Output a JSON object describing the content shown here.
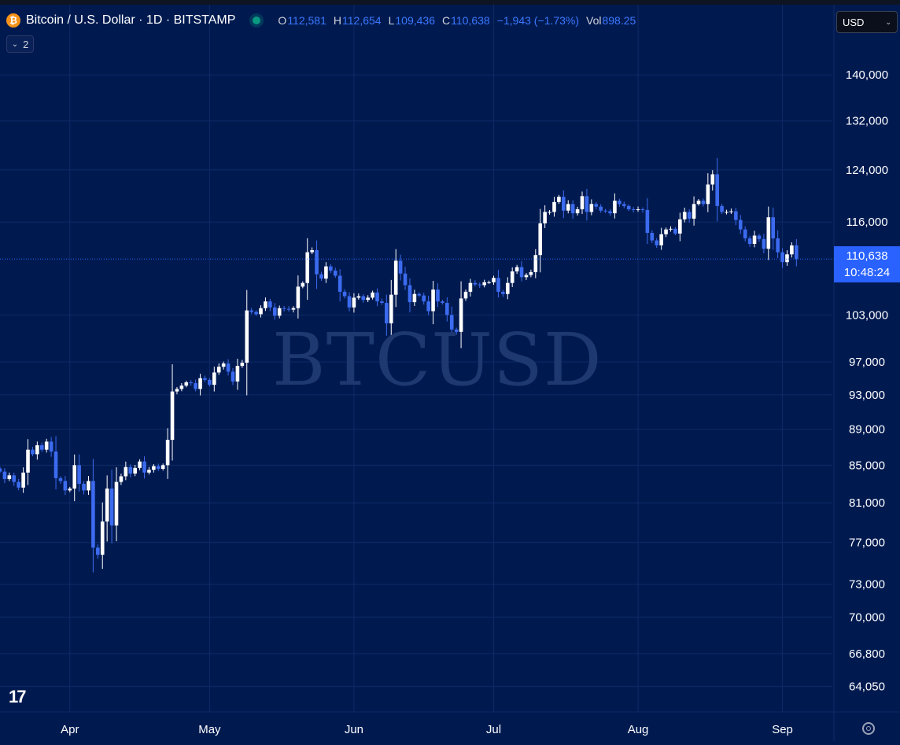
{
  "header": {
    "btc_icon_glyph": "₿",
    "title": "Bitcoin / U.S. Dollar · 1D · BITSTAMP",
    "ohlc": [
      {
        "k": "O",
        "v": "112,581"
      },
      {
        "k": "H",
        "v": "112,654"
      },
      {
        "k": "L",
        "v": "109,436"
      },
      {
        "k": "C",
        "v": "110,638"
      },
      {
        "k": "",
        "v": "−1,943 (−1.73%)"
      },
      {
        "k": "Vol",
        "v": "898.25"
      }
    ],
    "collapse_count": "2",
    "collapse_chevron": "⌄"
  },
  "currency": {
    "label": "USD",
    "chevron": "⌄"
  },
  "watermark": "BTCUSD",
  "last_price": {
    "price": "110,638",
    "countdown": "10:48:24"
  },
  "colors": {
    "background": "#001a50",
    "up": "#ffffff",
    "down": "#3c6bf0",
    "grid": "#0e2a66",
    "price_line": "#2962ff"
  },
  "logo": "17",
  "chart_data": {
    "type": "candlestick",
    "symbol": "BTCUSD",
    "interval": "1D",
    "y_scale": "log",
    "ylim": [
      62000,
      148000
    ],
    "y_ticks": [
      {
        "value": 140000,
        "label": "140,000"
      },
      {
        "value": 132000,
        "label": "132,000"
      },
      {
        "value": 124000,
        "label": "124,000"
      },
      {
        "value": 116000,
        "label": "116,000"
      },
      {
        "value": 103000,
        "label": "103,000"
      },
      {
        "value": 97000,
        "label": "97,000"
      },
      {
        "value": 93000,
        "label": "93,000"
      },
      {
        "value": 89000,
        "label": "89,000"
      },
      {
        "value": 85000,
        "label": "85,000"
      },
      {
        "value": 81000,
        "label": "81,000"
      },
      {
        "value": 77000,
        "label": "77,000"
      },
      {
        "value": 73000,
        "label": "73,000"
      },
      {
        "value": 70000,
        "label": "70,000"
      },
      {
        "value": 66800,
        "label": "66,800"
      },
      {
        "value": 64050,
        "label": "64,050"
      }
    ],
    "x_ticks": [
      {
        "date": "2025-04-01",
        "label": "Apr"
      },
      {
        "date": "2025-05-01",
        "label": "May"
      },
      {
        "date": "2025-06-01",
        "label": "Jun"
      },
      {
        "date": "2025-07-01",
        "label": "Jul"
      },
      {
        "date": "2025-08-01",
        "label": "Aug"
      },
      {
        "date": "2025-09-01",
        "label": "Sep"
      }
    ],
    "first_date": "2025-03-17",
    "last_price": 110638,
    "closes": [
      84300,
      83500,
      83900,
      83200,
      82600,
      84200,
      86700,
      86200,
      87200,
      86700,
      87600,
      86500,
      83600,
      83300,
      82300,
      82500,
      85000,
      83000,
      82300,
      83300,
      76500,
      75800,
      79100,
      82500,
      78700,
      83200,
      83800,
      84800,
      84100,
      84700,
      85400,
      84200,
      84500,
      84900,
      84600,
      85000,
      87800,
      93400,
      93700,
      94100,
      94500,
      94400,
      93700,
      95000,
      94800,
      94200,
      95700,
      96400,
      96800,
      95800,
      94600,
      96500,
      96900,
      103600,
      103400,
      103100,
      103900,
      104800,
      104000,
      102900,
      103900,
      103800,
      103700,
      103900,
      106800,
      107300,
      111600,
      111900,
      108500,
      107900,
      109600,
      109000,
      108300,
      106100,
      105500,
      104000,
      105300,
      105500,
      105000,
      105300,
      106000,
      104800,
      104600,
      101900,
      105700,
      110400,
      108600,
      107000,
      104700,
      105800,
      105600,
      104800,
      103500,
      106400,
      104800,
      104600,
      103000,
      101100,
      100800,
      105200,
      106100,
      107300,
      107100,
      107000,
      107400,
      107400,
      108000,
      106100,
      105800,
      107300,
      108900,
      109500,
      108100,
      108400,
      108800,
      111200,
      115800,
      117500,
      117500,
      119000,
      119800,
      117700,
      118700,
      117300,
      117900,
      119900,
      117500,
      118700,
      118300,
      117700,
      117600,
      117300,
      119200,
      118700,
      118400,
      117900,
      117800,
      117900,
      117800,
      114400,
      113300,
      112600,
      114200,
      114900,
      115000,
      114300,
      116400,
      117500,
      116500,
      118700,
      119200,
      118700,
      121700,
      123300,
      118400,
      117500,
      117500,
      117600,
      116300,
      114900,
      113600,
      112800,
      114000,
      113500,
      112100,
      116700,
      113600,
      111600,
      110200,
      111300,
      112581,
      110638
    ]
  }
}
